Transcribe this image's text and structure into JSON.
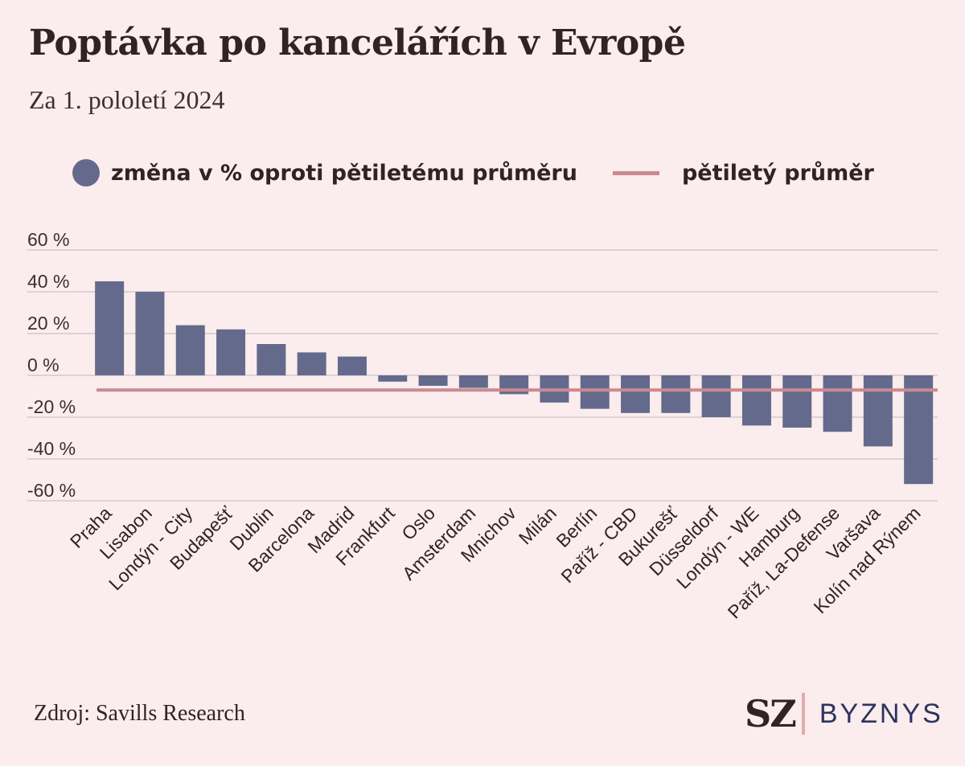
{
  "title": "Poptávka po kancelářích v Evropě",
  "subtitle": "Za 1. pololetí 2024",
  "legend": {
    "bars_label": "změna v % oproti pětiletému průměru",
    "line_label": "pětiletý průměr"
  },
  "source": "Zdroj: Savills Research",
  "logo": {
    "sz": "SZ",
    "brand": "BYZNYS"
  },
  "colors": {
    "background": "#fbeced",
    "bar": "#646a8c",
    "average_line": "#c98a92",
    "grid": "#d5c8d0",
    "text": "#2e2326"
  },
  "chart_data": {
    "type": "bar",
    "title": "Poptávka po kancelářích v Evropě",
    "subtitle": "Za 1. pololetí 2024",
    "xlabel": "",
    "ylabel": "",
    "ylim": [
      -60,
      60
    ],
    "yticks": [
      60,
      40,
      20,
      0,
      -20,
      -40,
      -60
    ],
    "ytick_labels": [
      "60 %",
      "40 %",
      "20 %",
      "0 %",
      "-20 %",
      "-40 %",
      "-60 %"
    ],
    "grid": true,
    "legend_position": "top",
    "categories": [
      "Praha",
      "Lisabon",
      "Londýn - City",
      "Budapešť",
      "Dublin",
      "Barcelona",
      "Madrid",
      "Frankfurt",
      "Oslo",
      "Amsterdam",
      "Mnichov",
      "Milán",
      "Berlín",
      "Paříž - CBD",
      "Bukurešť",
      "Düsseldorf",
      "Londýn - WE",
      "Hamburg",
      "Paříž, La-Defense",
      "Varšava",
      "Kolín nad Rýnem"
    ],
    "series": [
      {
        "name": "změna v % oproti pětiletému průměru",
        "values": [
          45,
          40,
          24,
          22,
          15,
          11,
          9,
          -3,
          -5,
          -6,
          -9,
          -13,
          -16,
          -18,
          -18,
          -20,
          -24,
          -25,
          -27,
          -34,
          -52
        ]
      }
    ],
    "reference_line": {
      "name": "pětiletý průměr",
      "value": -7
    }
  }
}
